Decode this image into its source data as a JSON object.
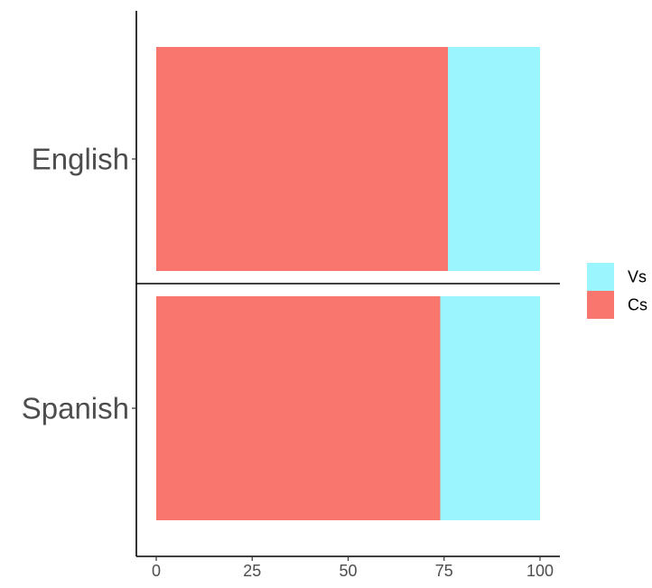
{
  "chart_data": {
    "type": "bar",
    "orientation": "horizontal",
    "stacked": true,
    "categories": [
      "English",
      "Spanish"
    ],
    "series": [
      {
        "name": "Cs",
        "values": [
          76,
          74
        ],
        "color": "#F8766D"
      },
      {
        "name": "Vs",
        "values": [
          24,
          26
        ],
        "color": "#9AF5FE"
      }
    ],
    "legend": {
      "placement": "right",
      "order": [
        "Vs",
        "Cs"
      ]
    },
    "xlim": [
      0,
      100
    ],
    "xticks": [
      0,
      25,
      50,
      75,
      100
    ],
    "xtick_labels": [
      "0",
      "25",
      "50",
      "75",
      "100"
    ],
    "grid": false,
    "title": "",
    "xlabel": "",
    "ylabel": ""
  }
}
